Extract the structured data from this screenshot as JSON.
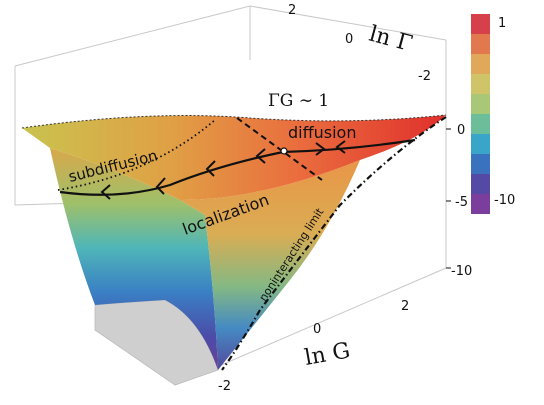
{
  "axes": {
    "lnGamma_label": "ln Γ",
    "lnG_label": "ln G",
    "lnGamma_ticks": [
      "2",
      "0",
      "-2"
    ],
    "lnG_ticks": [
      "-2",
      "0",
      "2"
    ],
    "z_ticks": [
      "0",
      "-5",
      "-10"
    ]
  },
  "regions": {
    "subdiffusion": "subdiffusion",
    "diffusion": "diffusion",
    "localization": "localization",
    "crossover": "ΓG ∼ 1",
    "noninteracting": "noninteracting limit"
  },
  "colorbar": {
    "max_label": "1",
    "min_label": "-10",
    "colors": [
      "#d6404a",
      "#e2784e",
      "#e0a95a",
      "#cfc467",
      "#a9c877",
      "#6cbe9a",
      "#39a5c8",
      "#3a72bd",
      "#5549a6",
      "#7b3e9c"
    ]
  }
}
